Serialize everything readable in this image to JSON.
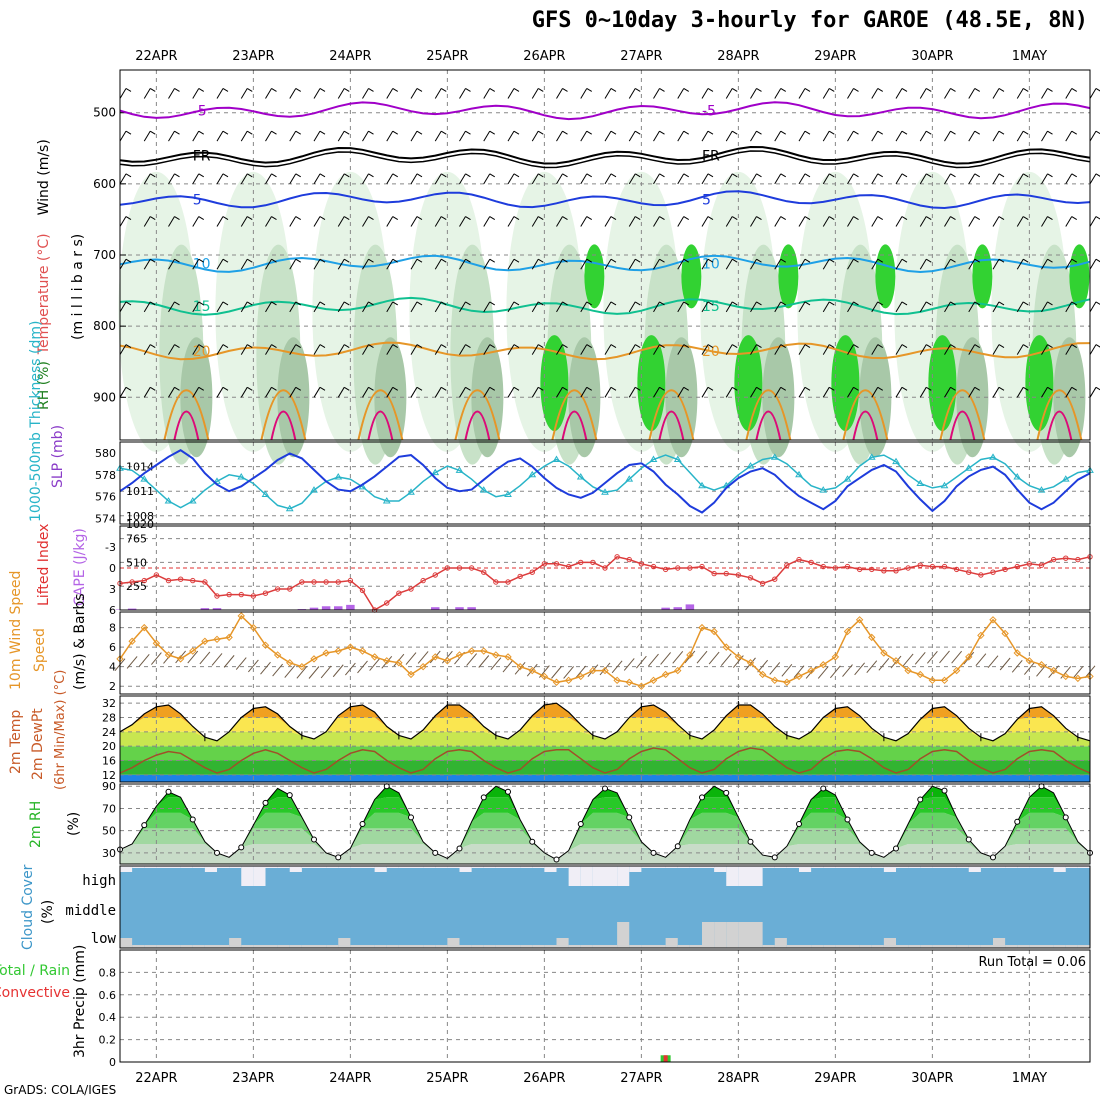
{
  "title": "GFS 0~10day 3-hourly for GAROE (48.5E, 8N)",
  "credit": "GrADS: COLA/IGES",
  "dates": [
    "22APR",
    "23APR",
    "24APR",
    "25APR",
    "26APR",
    "27APR",
    "28APR",
    "29APR",
    "30APR",
    "1MAY"
  ],
  "colors": {
    "purple": "#a000c8",
    "black": "#000000",
    "blue": "#1e3cdc",
    "lightblue": "#1ea0e6",
    "teal": "#10c090",
    "orange": "#e69628",
    "magenta": "#dc0a78",
    "rh_light": "#e6f4e6",
    "rh_mid": "#c8e2c8",
    "rh_dark": "#a8c8a8",
    "rh_green": "#32d232",
    "sky": "#6aaed6",
    "cape": "#b464e6",
    "li": "#dc3c3c",
    "wind": "#e69628",
    "barb": "#6e5a46"
  },
  "chart_data": [
    {
      "type": "line",
      "panel": "upper-air",
      "ylabel_parts": [
        {
          "text": "Wind (m/s)",
          "color": "#000000"
        },
        {
          "text": "Temperature (°C)",
          "color": "#e05050"
        },
        {
          "text": "RH (%)",
          "color": "#208020"
        }
      ],
      "ylabel2": "(m i l l i b a r s)",
      "yticks": [
        500,
        600,
        700,
        800,
        900
      ],
      "ylim": [
        440,
        960
      ],
      "xlim": [
        0,
        80
      ],
      "series": [
        {
          "label": "-5",
          "level": 497,
          "color": "#a000c8"
        },
        {
          "label": "FR",
          "level": 560,
          "color": "#000000"
        },
        {
          "label": "5",
          "level": 622,
          "color": "#1e3cdc"
        },
        {
          "label": "10",
          "level": 712,
          "color": "#1ea0e6"
        },
        {
          "label": "15",
          "level": 772,
          "color": "#10c090"
        },
        {
          "label": "20",
          "level": 835,
          "color": "#e69628"
        }
      ]
    },
    {
      "type": "line",
      "panel": "thickness-slp",
      "ylabel": "1000-500mb Thickness (dm)",
      "ylabel2": "SLP (mb)",
      "yticks_left": [
        574,
        576,
        578,
        580
      ],
      "yticks_right": [
        1008,
        1011,
        1014,
        1020
      ],
      "thickness": [
        578.6,
        578.4,
        577.6,
        576.6,
        575.6,
        575.0,
        575.6,
        576.6,
        577.4,
        578.0,
        577.8,
        577.2,
        576.2,
        575.2,
        574.9,
        575.4,
        576.6,
        577.4,
        577.8,
        577.6,
        576.9,
        576.0,
        575.6,
        575.6,
        576.4,
        577.4,
        578.2,
        578.8,
        578.4,
        577.6,
        576.6,
        576.0,
        576.2,
        577.0,
        578.0,
        578.8,
        579.4,
        578.8,
        577.8,
        576.9,
        576.4,
        576.6,
        577.6,
        578.6,
        579.4,
        579.8,
        579.4,
        578.2,
        577.0,
        576.6,
        577.0,
        578.0,
        578.8,
        579.4,
        579.6,
        579.0,
        578.0,
        577.0,
        576.6,
        576.8,
        577.6,
        578.8,
        579.6,
        579.8,
        579.2,
        578.0,
        577.2,
        576.8,
        577.0,
        577.8,
        578.6,
        579.4,
        579.6,
        579.0,
        577.8,
        577.0,
        576.6,
        576.9,
        577.6,
        578.2,
        578.4
      ],
      "slp": [
        1011.0,
        1012.0,
        1013.2,
        1014.2,
        1015.2,
        1016.0,
        1015.0,
        1013.2,
        1011.8,
        1011.0,
        1011.6,
        1012.6,
        1013.6,
        1014.8,
        1015.6,
        1015.0,
        1013.6,
        1012.2,
        1011.2,
        1011.0,
        1011.8,
        1012.8,
        1014.0,
        1015.2,
        1015.4,
        1014.2,
        1012.6,
        1011.4,
        1011.0,
        1011.2,
        1012.4,
        1013.6,
        1014.6,
        1015.0,
        1014.0,
        1012.6,
        1011.4,
        1010.6,
        1010.2,
        1010.8,
        1012.0,
        1013.2,
        1014.2,
        1014.4,
        1013.4,
        1011.8,
        1010.6,
        1009.2,
        1008.4,
        1009.6,
        1011.4,
        1012.6,
        1013.4,
        1013.8,
        1013.0,
        1011.6,
        1010.4,
        1009.6,
        1008.8,
        1009.8,
        1011.6,
        1012.6,
        1013.6,
        1014.2,
        1013.4,
        1011.6,
        1010.0,
        1008.6,
        1009.8,
        1011.6,
        1012.8,
        1013.6,
        1014.0,
        1013.0,
        1011.2,
        1009.6,
        1008.8,
        1009.6,
        1011.0,
        1012.4,
        1013.2
      ]
    },
    {
      "type": "bar",
      "panel": "cape-li",
      "ylabel": "Lifted Index",
      "ylabel2": "CAPE (J/kg)",
      "yticks_left": [
        -3,
        0,
        3,
        6
      ],
      "yticks_right": [
        255,
        510,
        765
      ],
      "cape": [
        5,
        15,
        0,
        0,
        0,
        0,
        0,
        20,
        20,
        0,
        0,
        0,
        0,
        0,
        0,
        10,
        25,
        40,
        40,
        55,
        0,
        0,
        0,
        0,
        0,
        0,
        30,
        0,
        30,
        30,
        0,
        0,
        0,
        0,
        0,
        0,
        0,
        0,
        0,
        0,
        0,
        0,
        0,
        0,
        0,
        25,
        30,
        60,
        0,
        0,
        0,
        0,
        0,
        0,
        0,
        0,
        0,
        0,
        0,
        0,
        0,
        0,
        0,
        0,
        0,
        0,
        0,
        0,
        0,
        0,
        0,
        0,
        0,
        0,
        0,
        0,
        0,
        0,
        0,
        0,
        0
      ],
      "li": [
        2.2,
        2.0,
        1.8,
        1.0,
        1.8,
        1.6,
        1.8,
        2.0,
        4.0,
        3.8,
        3.8,
        4.0,
        3.6,
        3.0,
        3.0,
        2.0,
        2.0,
        2.0,
        2.0,
        1.8,
        3.2,
        6.0,
        5.0,
        3.6,
        3.0,
        1.8,
        1.0,
        0.0,
        0.0,
        0.0,
        0.6,
        2.0,
        2.0,
        1.2,
        0.6,
        -0.6,
        -0.6,
        -0.2,
        -0.8,
        -0.8,
        0.0,
        -1.6,
        -1.2,
        -0.6,
        -0.2,
        0.2,
        0.0,
        0.0,
        -0.2,
        0.8,
        0.8,
        1.0,
        1.4,
        2.2,
        1.6,
        -0.4,
        -1.2,
        -0.8,
        -0.2,
        0.0,
        -0.2,
        0.2,
        0.2,
        0.4,
        0.4,
        0.0,
        -0.4,
        -0.2,
        -0.2,
        0.2,
        0.6,
        1.0,
        0.6,
        0.2,
        -0.2,
        -0.6,
        -0.4,
        -1.2,
        -1.4,
        -1.2,
        -1.6
      ]
    },
    {
      "type": "line",
      "panel": "wind10m",
      "ylabel": "10m Wind Speed",
      "ylabel2": "(m/s) & Barbs",
      "yticks": [
        2,
        4,
        6,
        8
      ],
      "speed": [
        4.8,
        6.6,
        8.0,
        6.4,
        5.2,
        4.8,
        5.6,
        6.6,
        6.8,
        7.0,
        9.2,
        8.0,
        6.2,
        5.2,
        4.4,
        4.0,
        4.8,
        5.4,
        5.6,
        6.0,
        5.6,
        5.0,
        4.6,
        4.4,
        3.2,
        4.0,
        5.0,
        4.6,
        5.2,
        5.6,
        5.6,
        5.2,
        5.0,
        4.0,
        3.6,
        3.0,
        2.4,
        2.6,
        3.0,
        3.6,
        3.6,
        2.6,
        2.4,
        2.0,
        2.6,
        3.2,
        3.6,
        5.2,
        8.0,
        7.6,
        6.0,
        5.0,
        4.4,
        3.2,
        2.6,
        2.4,
        3.0,
        3.6,
        4.2,
        5.0,
        7.6,
        8.8,
        7.0,
        5.4,
        4.6,
        3.6,
        3.2,
        2.6,
        2.6,
        3.6,
        5.0,
        7.2,
        8.8,
        7.4,
        5.4,
        4.6,
        4.2,
        3.6,
        3.0,
        2.8,
        3.0
      ]
    },
    {
      "type": "area",
      "panel": "temp2m",
      "ylabel": "2m Temp",
      "ylabel2": "2m DewPt",
      "ylabel3": "(6hr Min/Max) (°C)",
      "yticks": [
        12,
        16,
        20,
        24,
        28,
        32
      ],
      "temp": [
        24.0,
        26.0,
        29.0,
        31.0,
        31.5,
        29.0,
        25.5,
        22.5,
        21.5,
        24.0,
        28.0,
        30.5,
        31.0,
        29.0,
        25.5,
        23.0,
        22.0,
        24.0,
        28.5,
        31.0,
        31.5,
        29.5,
        25.5,
        23.0,
        22.0,
        24.5,
        28.5,
        31.5,
        31.5,
        29.0,
        25.5,
        23.0,
        22.0,
        24.5,
        28.5,
        31.5,
        32.0,
        29.5,
        26.0,
        23.0,
        22.0,
        24.0,
        28.0,
        31.0,
        31.5,
        29.5,
        26.0,
        23.0,
        22.0,
        24.5,
        28.5,
        31.5,
        31.5,
        29.0,
        25.5,
        23.0,
        22.0,
        24.0,
        28.0,
        30.5,
        31.0,
        28.5,
        25.0,
        22.5,
        21.5,
        23.5,
        27.5,
        30.5,
        31.0,
        28.5,
        25.0,
        22.5,
        21.5,
        23.5,
        27.5,
        30.5,
        31.0,
        28.5,
        25.0,
        22.5,
        21.5
      ],
      "dewpt": [
        12.5,
        14.0,
        16.0,
        17.5,
        18.5,
        18.0,
        16.0,
        14.0,
        12.5,
        13.5,
        16.0,
        18.0,
        19.0,
        18.0,
        16.0,
        14.0,
        12.5,
        13.5,
        16.0,
        18.0,
        19.0,
        18.5,
        16.0,
        14.0,
        12.5,
        13.5,
        16.5,
        18.5,
        19.0,
        18.5,
        16.0,
        14.0,
        12.5,
        13.5,
        16.5,
        18.5,
        19.0,
        19.0,
        16.5,
        14.0,
        12.5,
        13.5,
        16.5,
        18.5,
        19.5,
        19.0,
        16.5,
        14.0,
        12.5,
        13.5,
        16.5,
        18.5,
        19.5,
        19.0,
        16.5,
        14.0,
        12.5,
        13.5,
        16.5,
        18.5,
        19.0,
        18.5,
        16.5,
        14.0,
        12.5,
        13.5,
        16.5,
        18.5,
        19.0,
        18.5,
        16.0,
        14.0,
        12.5,
        13.5,
        16.5,
        18.5,
        19.0,
        18.5,
        16.0,
        14.0,
        12.5
      ],
      "bands": [
        {
          "from": 9,
          "to": 12,
          "color": "#1e82e6"
        },
        {
          "from": 12,
          "to": 16,
          "color": "#32b432"
        },
        {
          "from": 16,
          "to": 20,
          "color": "#64d24a"
        },
        {
          "from": 20,
          "to": 24,
          "color": "#c8e650"
        },
        {
          "from": 24,
          "to": 28,
          "color": "#fae650"
        },
        {
          "from": 28,
          "to": 32,
          "color": "#f0a020"
        },
        {
          "from": 32,
          "to": 36,
          "color": "#e66414"
        }
      ]
    },
    {
      "type": "area",
      "panel": "rh2m",
      "ylabel": "2m RH",
      "ylabel2": "(%)",
      "yticks": [
        30,
        50,
        70,
        90
      ],
      "rh": [
        33,
        38,
        55,
        72,
        85,
        80,
        60,
        40,
        30,
        26,
        35,
        55,
        75,
        88,
        82,
        62,
        42,
        30,
        26,
        34,
        56,
        78,
        90,
        84,
        62,
        40,
        30,
        25,
        34,
        58,
        80,
        90,
        85,
        60,
        40,
        30,
        24,
        32,
        56,
        78,
        88,
        84,
        62,
        40,
        30,
        26,
        36,
        60,
        80,
        90,
        84,
        62,
        40,
        28,
        26,
        36,
        56,
        78,
        88,
        82,
        60,
        40,
        30,
        26,
        34,
        56,
        78,
        90,
        86,
        62,
        42,
        30,
        26,
        36,
        58,
        80,
        90,
        84,
        62,
        40,
        30
      ]
    },
    {
      "type": "bar",
      "panel": "cloud",
      "ylabel": "Cloud Cover",
      "ylabel2": "(%)",
      "levels": [
        "high",
        "middle",
        "low"
      ]
    },
    {
      "type": "bar",
      "panel": "precip",
      "ylabel": "3hr Precip (mm)",
      "ylabel2_parts": [
        {
          "text": "Total / Rain",
          "color": "#32c832"
        },
        {
          "text": "Convective",
          "color": "#e63232"
        }
      ],
      "yticks": [
        0,
        0.2,
        0.4,
        0.6,
        0.8
      ],
      "ylim": [
        0,
        1.0
      ],
      "run_total": "Run Total = 0.06",
      "bars": [
        {
          "x": 45,
          "total": 0.06,
          "convective": 0.06
        }
      ]
    }
  ]
}
